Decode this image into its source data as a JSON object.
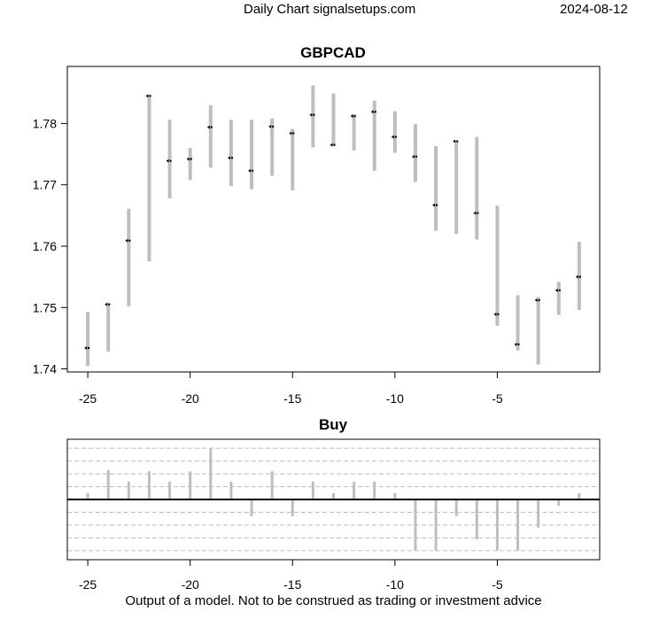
{
  "header": {
    "title": "Daily Chart signalsetups.com",
    "date": "2024-08-12"
  },
  "footer": {
    "disclaimer": "Output of a model. Not to be construed as trading or investment advice"
  },
  "colors": {
    "range_bar": "#bebebe",
    "close_marker": "#000000",
    "frame": "#000000",
    "grid": "#bfbfbf",
    "zero_line": "#000000"
  },
  "chart_data": [
    {
      "type": "bar",
      "title": "GBPCAD",
      "xlim": [
        -26,
        0
      ],
      "ylim": [
        1.7395,
        1.7893
      ],
      "xticks": [
        -25,
        -20,
        -15,
        -10,
        -5
      ],
      "yticks": [
        1.74,
        1.75,
        1.76,
        1.77,
        1.78
      ],
      "ytick_labels": [
        "1.74",
        "1.75",
        "1.76",
        "1.77",
        "1.78"
      ],
      "series": [
        {
          "x": [
            -25,
            -24,
            -23,
            -22,
            -21,
            -20,
            -19,
            -18,
            -17,
            -16,
            -15,
            -14,
            -13,
            -12,
            -11,
            -10,
            -9,
            -8,
            -7,
            -6,
            -5,
            -4,
            -3,
            -2,
            -1
          ],
          "low": [
            1.7405,
            1.7428,
            1.7502,
            1.7575,
            1.7678,
            1.7708,
            1.7728,
            1.7698,
            1.7693,
            1.7715,
            1.7691,
            1.7761,
            1.7763,
            1.7756,
            1.7723,
            1.7752,
            1.7705,
            1.7625,
            1.762,
            1.7611,
            1.747,
            1.743,
            1.7407,
            1.7488,
            1.7496
          ],
          "high": [
            1.7493,
            1.7508,
            1.7661,
            1.7845,
            1.7806,
            1.776,
            1.783,
            1.7806,
            1.7806,
            1.7808,
            1.7791,
            1.7862,
            1.7849,
            1.7815,
            1.7837,
            1.782,
            1.7799,
            1.7763,
            1.7772,
            1.7778,
            1.7666,
            1.752,
            1.7517,
            1.7542,
            1.7607
          ],
          "close": [
            1.7434,
            1.7505,
            1.7609,
            1.7845,
            1.7739,
            1.7742,
            1.7794,
            1.7744,
            1.7723,
            1.7795,
            1.7784,
            1.7814,
            1.7765,
            1.7812,
            1.7819,
            1.7778,
            1.7746,
            1.7667,
            1.7771,
            1.7654,
            1.7489,
            1.744,
            1.7512,
            1.7528,
            1.755
          ]
        }
      ]
    },
    {
      "type": "bar",
      "title": "Buy",
      "xlim": [
        -26,
        0
      ],
      "ylim": [
        -4.7,
        4.7
      ],
      "xticks": [
        -25,
        -20,
        -15,
        -10,
        -5
      ],
      "gridlines": [
        -4,
        -3,
        -2,
        -1,
        1,
        2,
        3,
        4
      ],
      "x": [
        -25,
        -24,
        -23,
        -22,
        -21,
        -20,
        -19,
        -18,
        -17,
        -16,
        -15,
        -14,
        -13,
        -12,
        -11,
        -10,
        -9,
        -8,
        -7,
        -6,
        -5,
        -4,
        -3,
        -2,
        -1
      ],
      "values": [
        0.5,
        2.3,
        1.4,
        2.2,
        1.4,
        2.2,
        4.0,
        1.4,
        -1.3,
        2.2,
        -1.3,
        1.4,
        0.5,
        1.4,
        1.4,
        0.5,
        -4.0,
        -4.0,
        -1.3,
        -3.1,
        -4.0,
        -4.0,
        -2.2,
        -0.5,
        0.5
      ]
    }
  ]
}
